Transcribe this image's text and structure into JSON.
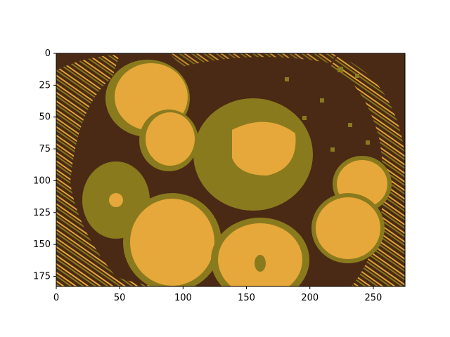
{
  "figure": {
    "colors": {
      "background": "#ffffff",
      "dark": "#4a2a14",
      "mid": "#8a7a1e",
      "light": "#e6a83a"
    },
    "x_ticks": [
      "0",
      "50",
      "100",
      "150",
      "200",
      "250"
    ],
    "y_ticks": [
      "0",
      "25",
      "50",
      "75",
      "100",
      "125",
      "150",
      "175"
    ],
    "image_extent": {
      "width_units": 275,
      "height_units": 183
    }
  }
}
